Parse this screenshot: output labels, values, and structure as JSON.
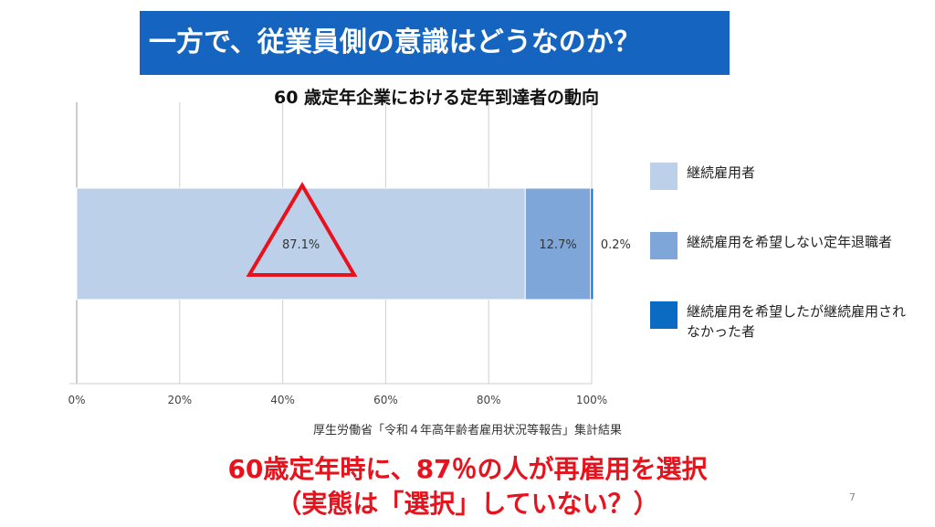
{
  "slide": {
    "banner": "一方で、従業員側の意識はどうなのか？",
    "source": "厚生労働省「令和４年高年齢者雇用状況等報告」集計結果",
    "conclusion_line1": "60歳定年時に、87％の人が再雇用を選択",
    "conclusion_line2": "（実態は「選択」していない？）",
    "page_number": "7",
    "banner_color": "#1565c0",
    "conclusion_color": "#e8121d",
    "triangle_color": "#e8121d"
  },
  "chart_data": {
    "type": "bar",
    "orientation": "horizontal-stacked-100",
    "title": "60 歳定年企業における定年到達者の動向",
    "xlim": [
      0,
      100
    ],
    "x_ticks": [
      "0%",
      "20%",
      "40%",
      "60%",
      "80%",
      "100%"
    ],
    "grid": true,
    "legend_position": "right",
    "series": [
      {
        "name": "継続雇用者",
        "values": [
          87.1
        ],
        "label": "87.1%",
        "color": "#bcd0ea"
      },
      {
        "name": "継続雇用を希望しない定年退職者",
        "values": [
          12.7
        ],
        "label": "12.7%",
        "color": "#7ea6d8"
      },
      {
        "name": "継続雇用を希望したが継続雇用されなかった者",
        "values": [
          0.2
        ],
        "label": "0.2%",
        "color": "#0b6bc2"
      }
    ]
  }
}
